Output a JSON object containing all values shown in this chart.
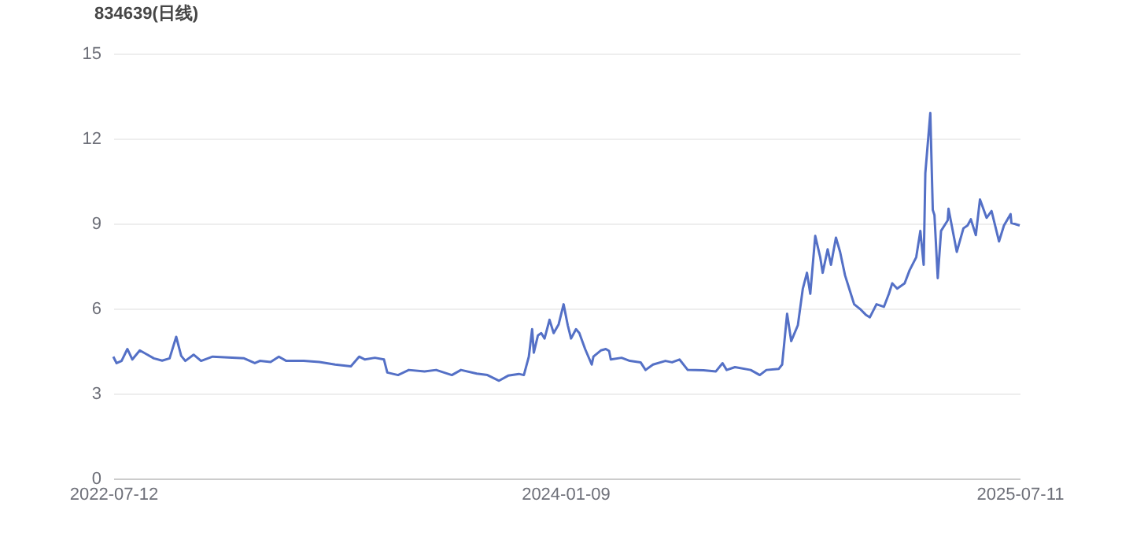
{
  "chart_data": {
    "type": "line",
    "title": "834639(日线)",
    "x": [
      "2022-07-12",
      "2022-07-16",
      "2022-07-22",
      "2022-07-29",
      "2022-08-04",
      "2022-08-13",
      "2022-08-21",
      "2022-08-30",
      "2022-09-09",
      "2022-09-18",
      "2022-09-26",
      "2022-10-02",
      "2022-10-07",
      "2022-10-17",
      "2022-10-26",
      "2022-11-09",
      "2022-12-17",
      "2022-12-30",
      "2023-01-05",
      "2023-01-18",
      "2023-01-28",
      "2023-02-06",
      "2023-02-27",
      "2023-03-18",
      "2023-04-06",
      "2023-04-25",
      "2023-05-05",
      "2023-05-12",
      "2023-05-24",
      "2023-06-04",
      "2023-06-08",
      "2023-06-21",
      "2023-07-04",
      "2023-07-23",
      "2023-08-06",
      "2023-08-25",
      "2023-09-05",
      "2023-09-24",
      "2023-10-07",
      "2023-10-21",
      "2023-11-01",
      "2023-11-14",
      "2023-11-20",
      "2023-11-26",
      "2023-11-30",
      "2023-12-02",
      "2023-12-07",
      "2023-12-11",
      "2023-12-15",
      "2023-12-21",
      "2023-12-26",
      "2024-01-01",
      "2024-01-07",
      "2024-01-12",
      "2024-01-16",
      "2024-01-22",
      "2024-01-26",
      "2024-02-02",
      "2024-02-10",
      "2024-02-12",
      "2024-02-21",
      "2024-02-27",
      "2024-03-02",
      "2024-03-04",
      "2024-03-17",
      "2024-03-27",
      "2024-04-09",
      "2024-04-15",
      "2024-04-24",
      "2024-05-09",
      "2024-05-17",
      "2024-05-26",
      "2024-06-05",
      "2024-06-24",
      "2024-07-09",
      "2024-07-17",
      "2024-07-22",
      "2024-08-01",
      "2024-08-20",
      "2024-08-31",
      "2024-09-08",
      "2024-09-23",
      "2024-09-27",
      "2024-10-03",
      "2024-10-08",
      "2024-10-16",
      "2024-10-22",
      "2024-10-27",
      "2024-10-31",
      "2024-11-06",
      "2024-11-12",
      "2024-11-15",
      "2024-11-21",
      "2024-11-25",
      "2024-12-01",
      "2024-12-06",
      "2024-12-12",
      "2024-12-18",
      "2024-12-23",
      "2024-12-31",
      "2025-01-06",
      "2025-01-11",
      "2025-01-19",
      "2025-01-28",
      "2025-02-03",
      "2025-02-07",
      "2025-02-13",
      "2025-02-22",
      "2025-02-28",
      "2025-03-08",
      "2025-03-13",
      "2025-03-17",
      "2025-03-19",
      "2025-03-25",
      "2025-03-28",
      "2025-03-30",
      "2025-04-03",
      "2025-04-07",
      "2025-04-15",
      "2025-04-16",
      "2025-04-26",
      "2025-05-04",
      "2025-05-09",
      "2025-05-13",
      "2025-05-19",
      "2025-05-24",
      "2025-06-01",
      "2025-06-07",
      "2025-06-16",
      "2025-06-22",
      "2025-06-30",
      "2025-07-01",
      "2025-07-11"
    ],
    "series": [
      {
        "color": "#5470c6",
        "values": [
          4.3,
          4.07,
          4.15,
          4.57,
          4.2,
          4.52,
          4.39,
          4.24,
          4.16,
          4.24,
          5.0,
          4.33,
          4.15,
          4.37,
          4.15,
          4.3,
          4.24,
          4.07,
          4.15,
          4.11,
          4.3,
          4.15,
          4.15,
          4.11,
          4.02,
          3.96,
          4.3,
          4.2,
          4.26,
          4.2,
          3.74,
          3.65,
          3.83,
          3.78,
          3.83,
          3.65,
          3.83,
          3.7,
          3.65,
          3.45,
          3.63,
          3.69,
          3.65,
          4.3,
          5.27,
          4.44,
          5.05,
          5.13,
          4.94,
          5.6,
          5.13,
          5.44,
          6.15,
          5.41,
          4.94,
          5.27,
          5.13,
          4.57,
          4.02,
          4.3,
          4.52,
          4.57,
          4.5,
          4.2,
          4.26,
          4.15,
          4.1,
          3.83,
          4.02,
          4.15,
          4.1,
          4.2,
          3.83,
          3.82,
          3.78,
          4.07,
          3.83,
          3.93,
          3.83,
          3.65,
          3.83,
          3.87,
          4.02,
          5.81,
          4.85,
          5.41,
          6.7,
          7.26,
          6.52,
          8.56,
          7.81,
          7.26,
          8.09,
          7.54,
          8.5,
          8.0,
          7.17,
          6.61,
          6.15,
          5.96,
          5.78,
          5.69,
          6.15,
          6.06,
          6.52,
          6.89,
          6.7,
          6.89,
          7.35,
          7.81,
          8.74,
          7.54,
          10.78,
          12.9,
          9.48,
          9.3,
          7.07,
          8.74,
          9.11,
          9.52,
          8.0,
          8.83,
          8.93,
          9.15,
          8.59,
          9.85,
          9.2,
          9.44,
          8.37,
          8.93,
          9.33,
          9.02,
          8.93
        ]
      }
    ],
    "xlim": [
      "2022-07-12",
      "2025-07-11"
    ],
    "xticks": [
      "2022-07-12",
      "2024-01-09",
      "2025-07-11"
    ],
    "ylim": [
      0,
      15
    ],
    "yticks": [
      0,
      3,
      6,
      9,
      12,
      15
    ],
    "grid": "y",
    "marker": "none",
    "line_style": "solid"
  }
}
